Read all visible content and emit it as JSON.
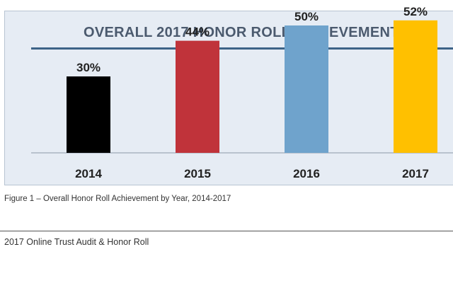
{
  "chart_data": {
    "type": "bar",
    "title": "OVERALL 2017 HONOR ROLL ACHIEVEMENT",
    "categories": [
      "2014",
      "2015",
      "2016",
      "2017"
    ],
    "values": [
      30,
      44,
      50,
      52
    ],
    "data_labels": [
      "30%",
      "44%",
      "50%",
      "52%"
    ],
    "colors": [
      "#000000",
      "#c0333a",
      "#6fa3cc",
      "#ffc000"
    ],
    "ylim": [
      0,
      60
    ],
    "grid": false,
    "legend": "none"
  },
  "caption": "Figure 1 – Overall Honor Roll Achievement by Year, 2014-2017",
  "footer": "2017 Online Trust Audit & Honor Roll"
}
